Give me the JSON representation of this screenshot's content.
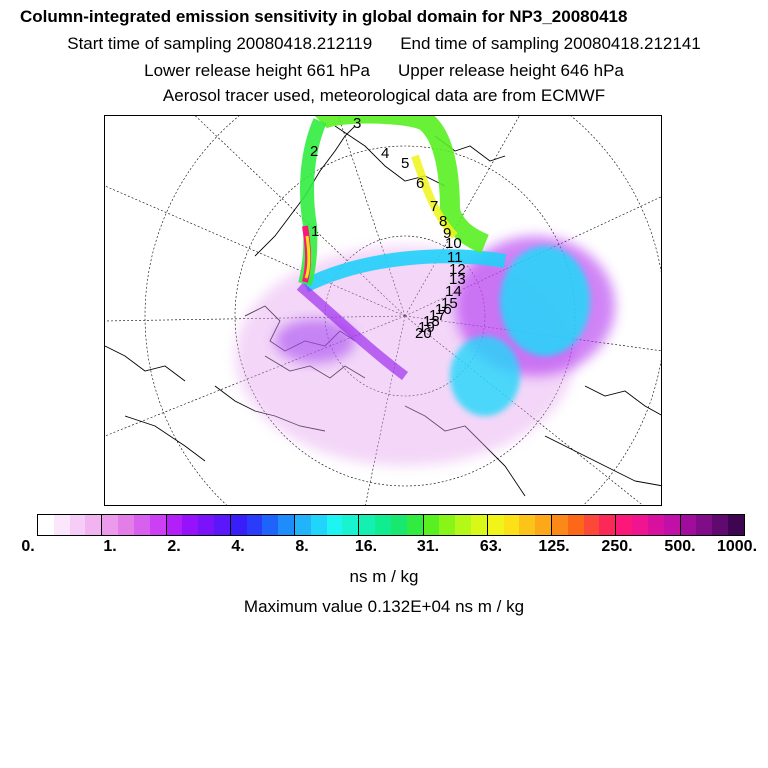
{
  "header": {
    "title": "Column-integrated emission sensitivity in global domain for NP3_20080418",
    "start_time": "Start time of sampling 20080418.212119",
    "end_time": "End time of sampling 20080418.212141",
    "lower_height": "Lower release height  661 hPa",
    "upper_height": "Upper release height  646 hPa",
    "tracer_info": "Aerosol tracer used, meteorological data are from ECMWF"
  },
  "trajectory_labels": [
    "1",
    "2",
    "3",
    "4",
    "5",
    "6",
    "7",
    "8",
    "9",
    "10",
    "11",
    "12",
    "13",
    "14",
    "15",
    "16",
    "17",
    "18",
    "19",
    "20"
  ],
  "colorbar": {
    "colors": [
      "#ffffff",
      "#fbe6fb",
      "#f6cdf6",
      "#f1b4f1",
      "#ec9aec",
      "#e37ee8",
      "#d860ee",
      "#cc3ff4",
      "#b31ff8",
      "#9612fa",
      "#7a12fa",
      "#5a18fa",
      "#3a1efa",
      "#2a3cfa",
      "#1f64fa",
      "#1e8cfa",
      "#22b4fa",
      "#20d4fa",
      "#1ef4f2",
      "#18f4d0",
      "#14f0b0",
      "#10ec90",
      "#18e870",
      "#30ec40",
      "#58f020",
      "#88f418",
      "#b4f818",
      "#d8f818",
      "#f0f418",
      "#fce018",
      "#fcc418",
      "#fca818",
      "#fc8818",
      "#fc6818",
      "#fc4838",
      "#fc2858",
      "#fc1878",
      "#f01490",
      "#d810a0",
      "#c010a8",
      "#a00c9c",
      "#800c88",
      "#600a70",
      "#3e0650"
    ],
    "tick_labels": [
      "0.",
      "1.",
      "2.",
      "4.",
      "8.",
      "16.",
      "31.",
      "63.",
      "125.",
      "250.",
      "500.",
      "1000."
    ],
    "units": "ns m / kg",
    "max_value": "Maximum value  0.132E+04 ns m / kg"
  }
}
